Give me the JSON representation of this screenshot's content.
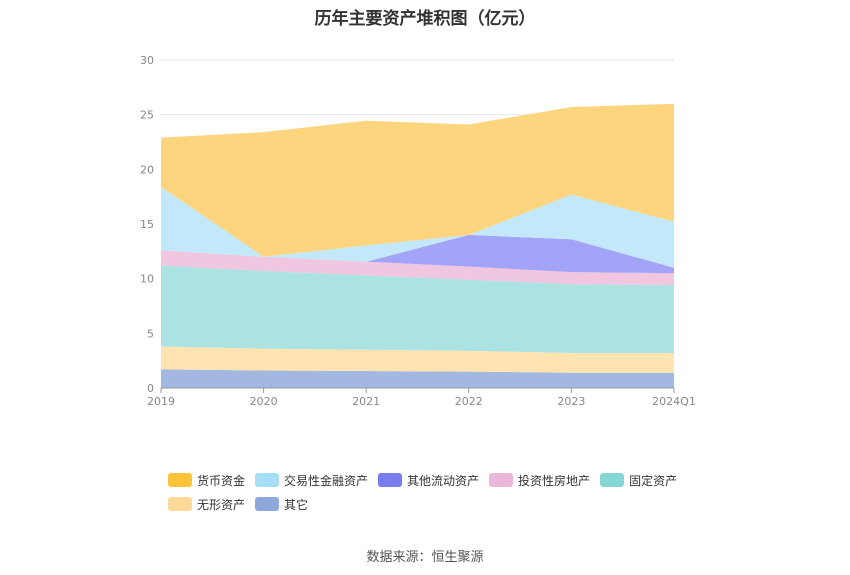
{
  "title": "历年主要资产堆积图（亿元）",
  "source": "数据来源：恒生聚源",
  "chart_data": {
    "type": "area",
    "stacked": true,
    "title": "历年主要资产堆积图（亿元）",
    "categories": [
      "2019",
      "2020",
      "2021",
      "2022",
      "2023",
      "2024Q1"
    ],
    "ylim": [
      0,
      30
    ],
    "yticks": [
      0,
      5,
      10,
      15,
      20,
      25,
      30
    ],
    "grid": true,
    "legend_position": "bottom",
    "series": [
      {
        "name": "其它",
        "color": "#a3b8e0",
        "values": [
          1.7,
          1.6,
          1.55,
          1.5,
          1.4,
          1.4
        ]
      },
      {
        "name": "无形资产",
        "color": "#ffe3b0",
        "values": [
          2.1,
          2.0,
          1.95,
          1.9,
          1.8,
          1.8
        ]
      },
      {
        "name": "固定资产",
        "color": "#abe2e2",
        "values": [
          7.4,
          7.1,
          6.8,
          6.5,
          6.3,
          6.2
        ]
      },
      {
        "name": "投资性房地产",
        "color": "#f0c6e0",
        "values": [
          1.4,
          1.3,
          1.25,
          1.2,
          1.1,
          1.1
        ]
      },
      {
        "name": "其他流动资产",
        "color": "#a3a3f7",
        "values": [
          0.0,
          0.0,
          0.0,
          2.9,
          3.0,
          0.5
        ]
      },
      {
        "name": "交易性金融资产",
        "color": "#c2e8fa",
        "values": [
          5.8,
          0.0,
          1.5,
          0.0,
          4.1,
          4.2
        ]
      },
      {
        "name": "货币资金",
        "color": "#fdd57e",
        "values": [
          4.5,
          11.4,
          11.4,
          10.1,
          8.0,
          10.8
        ]
      }
    ],
    "legend_order": [
      "货币资金",
      "交易性金融资产",
      "其他流动资产",
      "投资性房地产",
      "固定资产",
      "无形资产",
      "其它"
    ],
    "legend_colors": {
      "货币资金": "#f9c33c",
      "交易性金融资产": "#a6def8",
      "其他流动资产": "#7b7bf2",
      "投资性房地产": "#ebb9d8",
      "固定资产": "#86d6d6",
      "无形资产": "#ffd99a",
      "其它": "#8fa8dc"
    }
  }
}
